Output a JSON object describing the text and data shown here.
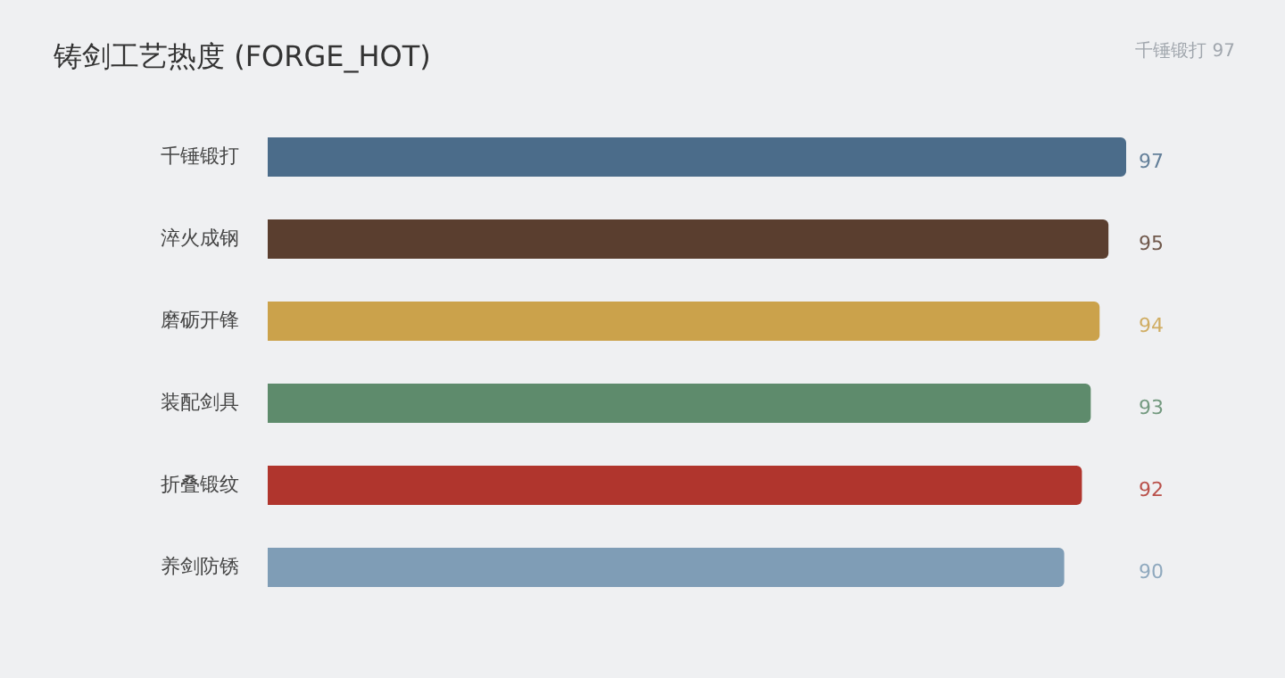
{
  "chart_data": {
    "type": "bar",
    "orientation": "horizontal",
    "tick_labels": "y",
    "data_labels": true,
    "title": "铸剑工艺热度 (FORGE_HOT)",
    "annotations": [
      "千锤锻打 97"
    ],
    "categories": [
      "千锤锻打",
      "淬火成钢",
      "磨砺开锋",
      "装配剑具",
      "折叠锻纹",
      "养剑防锈"
    ],
    "values": [
      97,
      95,
      94,
      93,
      92,
      90
    ],
    "colors": [
      "#4b6c8a",
      "#5a3e2f",
      "#cba24b",
      "#5e8b6c",
      "#b0352d",
      "#7f9db6"
    ]
  }
}
